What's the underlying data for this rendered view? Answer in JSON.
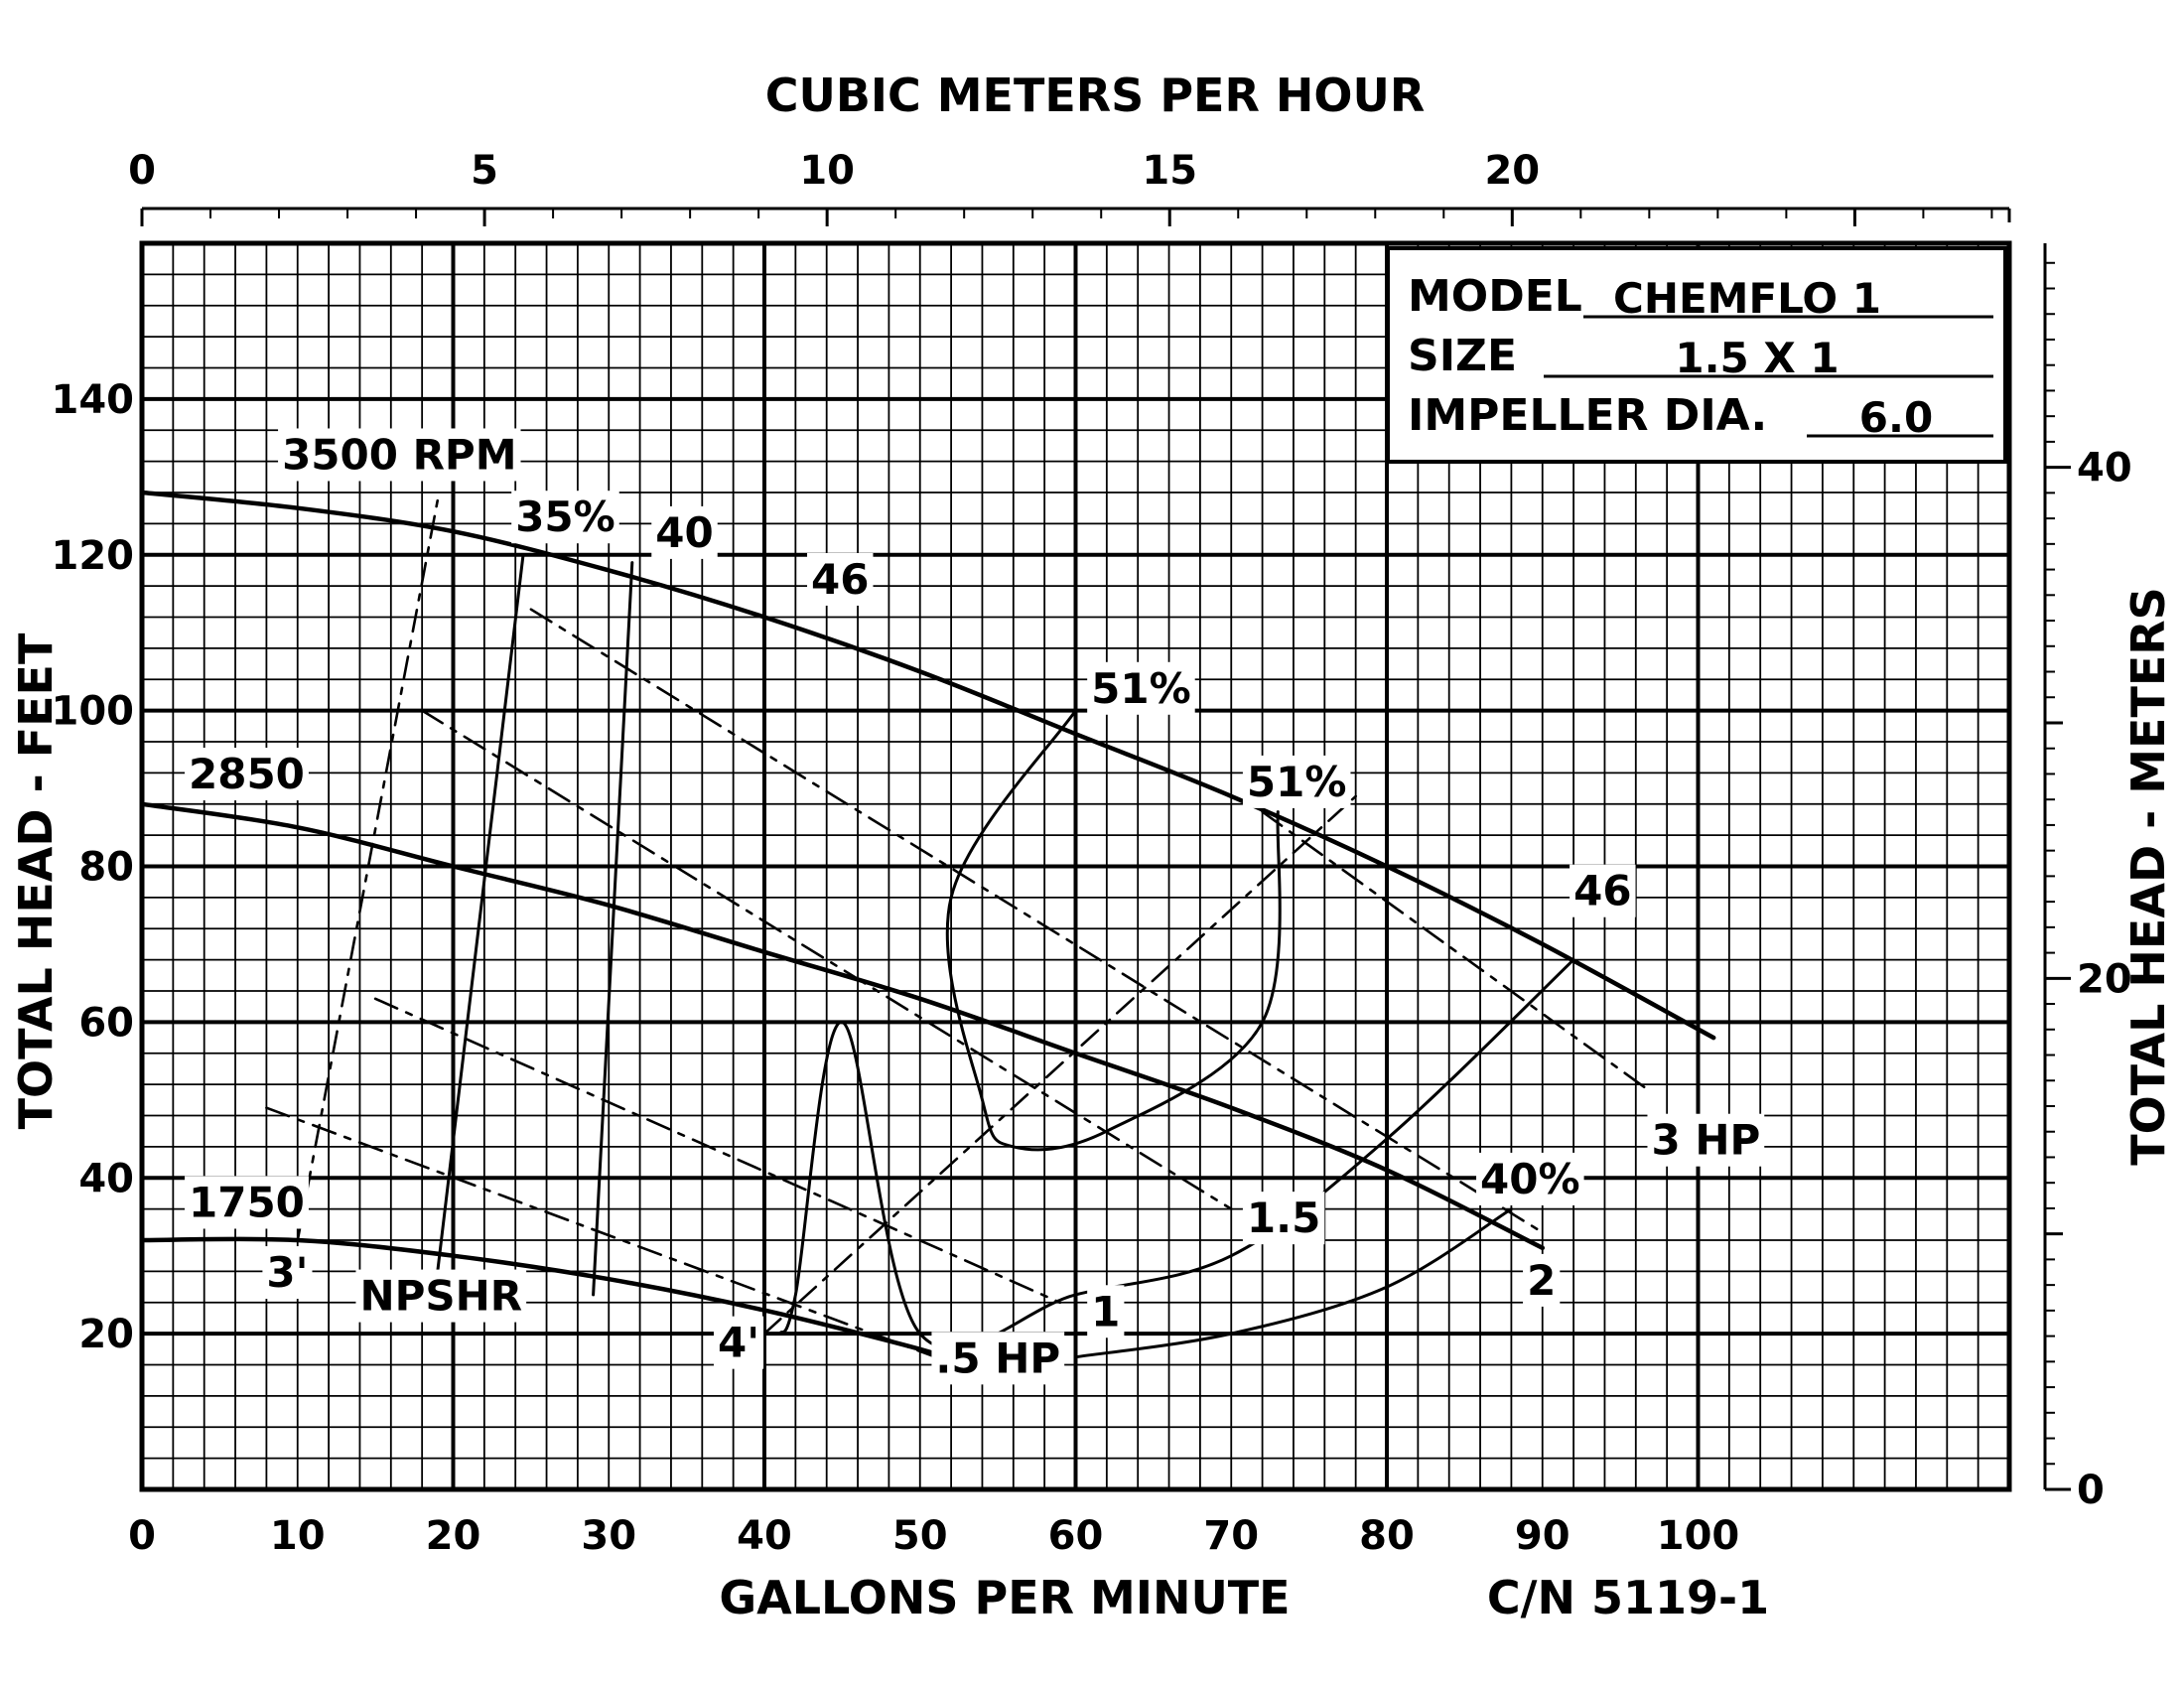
{
  "chart_data": {
    "type": "line",
    "title": "",
    "xlabel": "GALLONS PER MINUTE",
    "ylabel": "TOTAL HEAD - FEET",
    "x2label": "CUBIC METERS PER HOUR",
    "y2label": "TOTAL HEAD - METERS",
    "catalog_number": "C/N 5119-1",
    "xlim": [
      0,
      120
    ],
    "ylim": [
      0,
      160
    ],
    "x2lim": [
      0,
      27.25
    ],
    "y2lim": [
      0,
      48.8
    ],
    "x_ticks": [
      0,
      10,
      20,
      30,
      40,
      50,
      60,
      70,
      80,
      90,
      100
    ],
    "y_ticks": [
      20,
      40,
      60,
      80,
      100,
      120,
      140
    ],
    "x2_ticks": [
      0,
      5,
      10,
      15,
      20
    ],
    "y2_ticks": [
      0,
      20,
      40
    ],
    "grid": true,
    "legend": "none",
    "info_box": {
      "model_label": "MODEL",
      "model_value": "CHEMFLO 1",
      "size_label": "SIZE",
      "size_value": "1.5 X 1",
      "impeller_label": "IMPELLER DIA.",
      "impeller_value": "6.0"
    },
    "series": [
      {
        "name": "3500 RPM",
        "kind": "speed",
        "x": [
          0,
          10,
          20,
          30,
          40,
          50,
          60,
          70,
          80,
          90,
          101
        ],
        "y": [
          128,
          126,
          123,
          118,
          112,
          105,
          97,
          89,
          80,
          70,
          58
        ]
      },
      {
        "name": "2850",
        "kind": "speed",
        "x": [
          0,
          10,
          20,
          30,
          40,
          50,
          60,
          70,
          80,
          90
        ],
        "y": [
          88,
          85,
          80,
          75,
          69,
          63,
          56,
          49,
          41,
          31
        ]
      },
      {
        "name": "1750",
        "kind": "speed",
        "x": [
          0,
          10,
          20,
          30,
          40,
          50,
          51
        ],
        "y": [
          32,
          32,
          30,
          27,
          23,
          18,
          17
        ]
      },
      {
        "name": "35%",
        "kind": "efficiency",
        "x": [
          19,
          24.5
        ],
        "y": [
          28,
          120
        ]
      },
      {
        "name": "40",
        "kind": "efficiency",
        "x": [
          29,
          31.5
        ],
        "y": [
          25,
          119
        ]
      },
      {
        "name": "46",
        "kind": "efficiency",
        "x": [
          41,
          42,
          45,
          50,
          60,
          70,
          80,
          92
        ],
        "y": [
          20,
          25,
          60,
          20,
          25,
          30,
          45,
          68
        ]
      },
      {
        "name": "51%",
        "kind": "efficiency",
        "x": [
          60,
          52,
          54,
          56,
          62,
          72,
          73
        ],
        "y": [
          100,
          76,
          50,
          44,
          46,
          60,
          87
        ]
      },
      {
        "name": "40%",
        "kind": "efficiency",
        "x": [
          60,
          70,
          80,
          88
        ],
        "y": [
          17,
          20,
          26,
          36
        ]
      },
      {
        "name": "3'",
        "kind": "npshr",
        "x": [
          10,
          19
        ],
        "y": [
          32,
          127
        ]
      },
      {
        "name": "4'",
        "kind": "npshr",
        "x": [
          40,
          78
        ],
        "y": [
          20,
          89
        ]
      },
      {
        "name": ".5 HP",
        "kind": "power",
        "x": [
          8,
          51
        ],
        "y": [
          49,
          17
        ]
      },
      {
        "name": "1",
        "kind": "power",
        "x": [
          15,
          59
        ],
        "y": [
          63,
          24
        ]
      },
      {
        "name": "1.5",
        "kind": "power",
        "x": [
          18,
          70
        ],
        "y": [
          100,
          36
        ]
      },
      {
        "name": "2",
        "kind": "power",
        "x": [
          25,
          90
        ],
        "y": [
          113,
          33
        ]
      },
      {
        "name": "3 HP",
        "kind": "power",
        "x": [
          72,
          97
        ],
        "y": [
          87,
          51
        ]
      }
    ],
    "annotations": [
      {
        "text": "3500 RPM",
        "x": 9,
        "y": 131
      },
      {
        "text": "2850",
        "x": 3,
        "y": 90
      },
      {
        "text": "1750",
        "x": 3,
        "y": 35
      },
      {
        "text": "35%",
        "x": 24,
        "y": 123
      },
      {
        "text": "40",
        "x": 33,
        "y": 121
      },
      {
        "text": "46",
        "x": 43,
        "y": 115
      },
      {
        "text": "51%",
        "x": 61,
        "y": 101
      },
      {
        "text": "51%",
        "x": 71,
        "y": 89
      },
      {
        "text": "46",
        "x": 92,
        "y": 75
      },
      {
        "text": "40%",
        "x": 86,
        "y": 38
      },
      {
        "text": "3 HP",
        "x": 97,
        "y": 43
      },
      {
        "text": "1.5",
        "x": 71,
        "y": 33
      },
      {
        "text": "2",
        "x": 89,
        "y": 25
      },
      {
        "text": "1",
        "x": 61,
        "y": 21
      },
      {
        "text": ".5 HP",
        "x": 51,
        "y": 15
      },
      {
        "text": "4'",
        "x": 37,
        "y": 17
      },
      {
        "text": "3'",
        "x": 8,
        "y": 26
      },
      {
        "text": "NPSHR",
        "x": 14,
        "y": 23
      }
    ]
  }
}
